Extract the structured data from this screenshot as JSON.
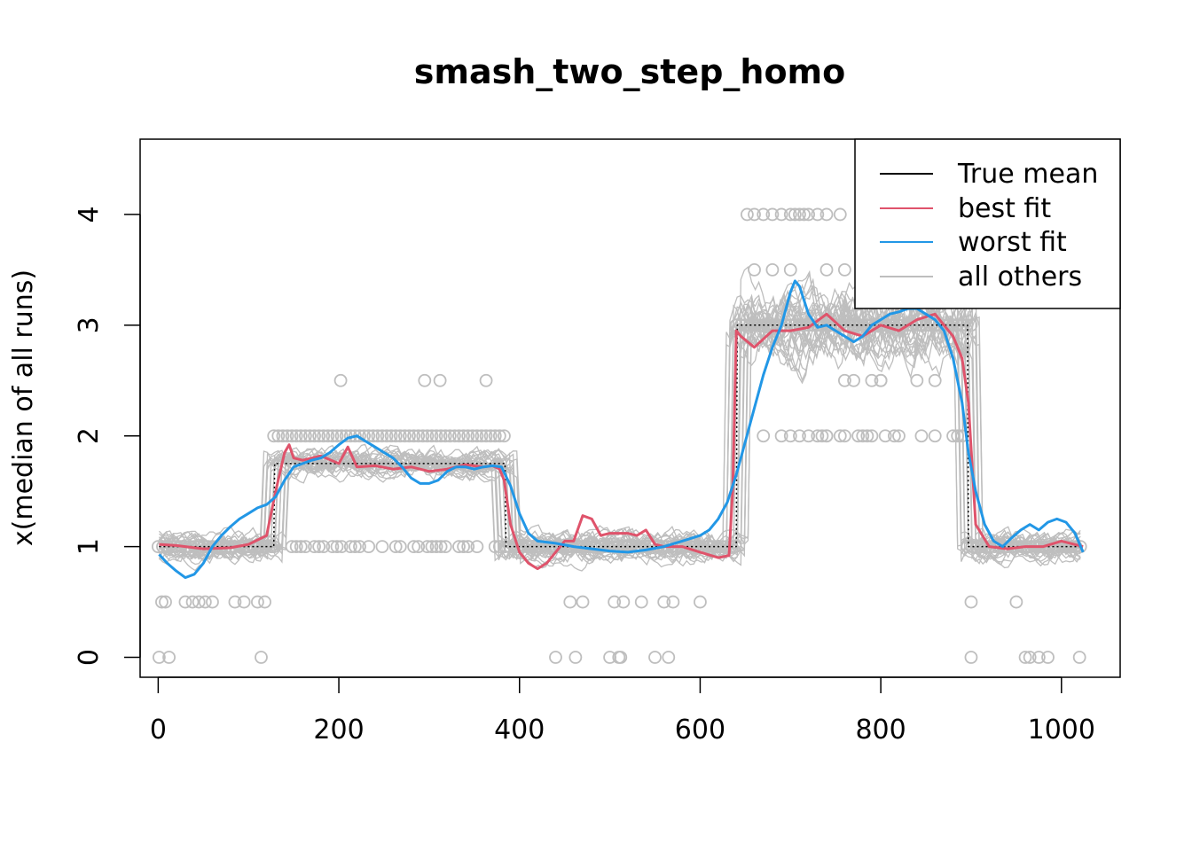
{
  "chart_data": {
    "type": "line",
    "title": "smash_two_step_homo",
    "xlabel": "",
    "ylabel": "x(median of all runs)",
    "xlim": [
      -20,
      1065
    ],
    "ylim": [
      -0.18,
      4.68
    ],
    "x_ticks": [
      0,
      200,
      400,
      600,
      800,
      1000
    ],
    "y_ticks": [
      0,
      1,
      2,
      3,
      4
    ],
    "legend": {
      "position": "top-right",
      "entries": [
        {
          "label": "True mean",
          "color": "#000000"
        },
        {
          "label": "best fit",
          "color": "#DF536B"
        },
        {
          "label": "worst fit",
          "color": "#2297E6"
        },
        {
          "label": "all others",
          "color": "#BEBEBE"
        }
      ]
    },
    "colors": {
      "true_mean": "#000000",
      "best_fit": "#DF536B",
      "worst_fit": "#2297E6",
      "others": "#BEBEBE",
      "points": "#BEBEBE"
    },
    "series": [
      {
        "name": "True mean",
        "style": "dotted-step",
        "x": [
          1,
          128,
          129,
          384,
          385,
          640,
          641,
          896,
          897,
          1024
        ],
        "y": [
          1,
          1,
          1.75,
          1.75,
          1,
          1,
          3,
          3,
          1,
          1
        ]
      },
      {
        "name": "best fit",
        "x": [
          1,
          20,
          50,
          80,
          100,
          120,
          130,
          140,
          145,
          150,
          160,
          180,
          200,
          210,
          220,
          240,
          260,
          280,
          300,
          320,
          340,
          360,
          370,
          378,
          383,
          390,
          400,
          410,
          420,
          430,
          440,
          450,
          460,
          470,
          480,
          490,
          500,
          510,
          520,
          530,
          540,
          550,
          560,
          580,
          600,
          620,
          632,
          636,
          640,
          645,
          660,
          680,
          700,
          720,
          740,
          760,
          780,
          800,
          820,
          840,
          860,
          880,
          890,
          897,
          905,
          920,
          940,
          960,
          980,
          1000,
          1024
        ],
        "y": [
          1.02,
          1.01,
          0.98,
          0.99,
          1.02,
          1.1,
          1.5,
          1.85,
          1.92,
          1.8,
          1.78,
          1.82,
          1.75,
          1.9,
          1.72,
          1.73,
          1.7,
          1.72,
          1.68,
          1.7,
          1.74,
          1.72,
          1.73,
          1.7,
          1.6,
          1.2,
          0.95,
          0.85,
          0.8,
          0.85,
          0.95,
          1.05,
          1.05,
          1.28,
          1.25,
          1.1,
          1.12,
          1.12,
          1.12,
          1.1,
          1.15,
          1.02,
          1.0,
          1.0,
          0.95,
          0.9,
          0.92,
          1.5,
          2.95,
          2.9,
          2.8,
          2.95,
          2.95,
          2.98,
          3.1,
          2.95,
          2.9,
          3.0,
          2.95,
          3.05,
          3.1,
          2.9,
          2.7,
          2.3,
          1.2,
          1.0,
          0.98,
          1.0,
          1.0,
          1.05,
          1.0
        ]
      },
      {
        "name": "worst fit",
        "x": [
          1,
          10,
          20,
          30,
          40,
          50,
          60,
          70,
          80,
          90,
          100,
          110,
          120,
          130,
          140,
          150,
          160,
          170,
          180,
          190,
          200,
          210,
          220,
          230,
          240,
          250,
          260,
          270,
          280,
          290,
          300,
          310,
          320,
          330,
          340,
          350,
          360,
          370,
          380,
          390,
          400,
          410,
          420,
          430,
          440,
          460,
          480,
          500,
          520,
          540,
          560,
          580,
          600,
          610,
          620,
          630,
          640,
          650,
          660,
          670,
          680,
          690,
          700,
          705,
          710,
          720,
          730,
          740,
          750,
          760,
          770,
          780,
          790,
          800,
          810,
          820,
          830,
          840,
          850,
          860,
          870,
          880,
          890,
          897,
          905,
          915,
          925,
          935,
          945,
          955,
          965,
          975,
          985,
          995,
          1005,
          1015,
          1024
        ],
        "y": [
          0.93,
          0.85,
          0.78,
          0.72,
          0.75,
          0.85,
          1.0,
          1.1,
          1.18,
          1.25,
          1.3,
          1.35,
          1.38,
          1.45,
          1.6,
          1.72,
          1.75,
          1.78,
          1.8,
          1.85,
          1.92,
          1.98,
          2.0,
          1.95,
          1.9,
          1.85,
          1.8,
          1.72,
          1.62,
          1.57,
          1.57,
          1.6,
          1.68,
          1.72,
          1.72,
          1.7,
          1.72,
          1.73,
          1.72,
          1.55,
          1.3,
          1.12,
          1.05,
          1.04,
          1.03,
          1.0,
          0.98,
          0.96,
          0.95,
          0.97,
          1.0,
          1.05,
          1.1,
          1.15,
          1.25,
          1.4,
          1.65,
          1.95,
          2.25,
          2.55,
          2.8,
          3.0,
          3.3,
          3.4,
          3.35,
          3.1,
          2.98,
          3.0,
          2.95,
          2.9,
          2.85,
          2.9,
          3.0,
          3.05,
          3.1,
          3.12,
          3.15,
          3.15,
          3.1,
          3.05,
          2.95,
          2.7,
          2.3,
          1.85,
          1.5,
          1.2,
          1.05,
          1.0,
          1.08,
          1.15,
          1.2,
          1.15,
          1.22,
          1.25,
          1.22,
          1.12,
          0.95
        ]
      }
    ],
    "scatter_points": {
      "name": "run values",
      "x": [
        1,
        4,
        8,
        12,
        30,
        38,
        45,
        52,
        60,
        85,
        95,
        110,
        114,
        118,
        440,
        456,
        462,
        470,
        500,
        505,
        510,
        512,
        515,
        535,
        550,
        560,
        565,
        570,
        600,
        720,
        740,
        760,
        780,
        800,
        820,
        900,
        950,
        960,
        965,
        975,
        985,
        1020,
        202,
        295,
        312,
        363,
        640,
        652,
        660,
        670,
        680,
        690,
        700,
        705,
        710,
        715,
        720,
        730,
        740,
        755,
        760,
        770,
        790,
        880,
        890,
        900,
        640,
        660,
        680,
        700,
        720,
        740,
        760,
        780,
        800,
        820,
        840,
        860,
        880
      ],
      "y": [
        0,
        0.5,
        0.5,
        0,
        0.5,
        0.5,
        0.5,
        0.5,
        0.5,
        0.5,
        0.5,
        0.5,
        0,
        0.5,
        0,
        0.5,
        0,
        0.5,
        0,
        0.5,
        0,
        0,
        0.5,
        0.5,
        0,
        0.5,
        0,
        0.5,
        0.5,
        2,
        2,
        2,
        2,
        2.5,
        2,
        0.5,
        0.5,
        0,
        0,
        0,
        0,
        0,
        2.5,
        2.5,
        2.5,
        2.5,
        3,
        4,
        4,
        4,
        4,
        4,
        4,
        4,
        4,
        4,
        4,
        4,
        4,
        4,
        2.5,
        2.5,
        2.5,
        2,
        2,
        0,
        3,
        3.5,
        3.5,
        3.5,
        3,
        3.5,
        3.5,
        3,
        2.5,
        3,
        2.5,
        2.5,
        3
      ]
    }
  }
}
